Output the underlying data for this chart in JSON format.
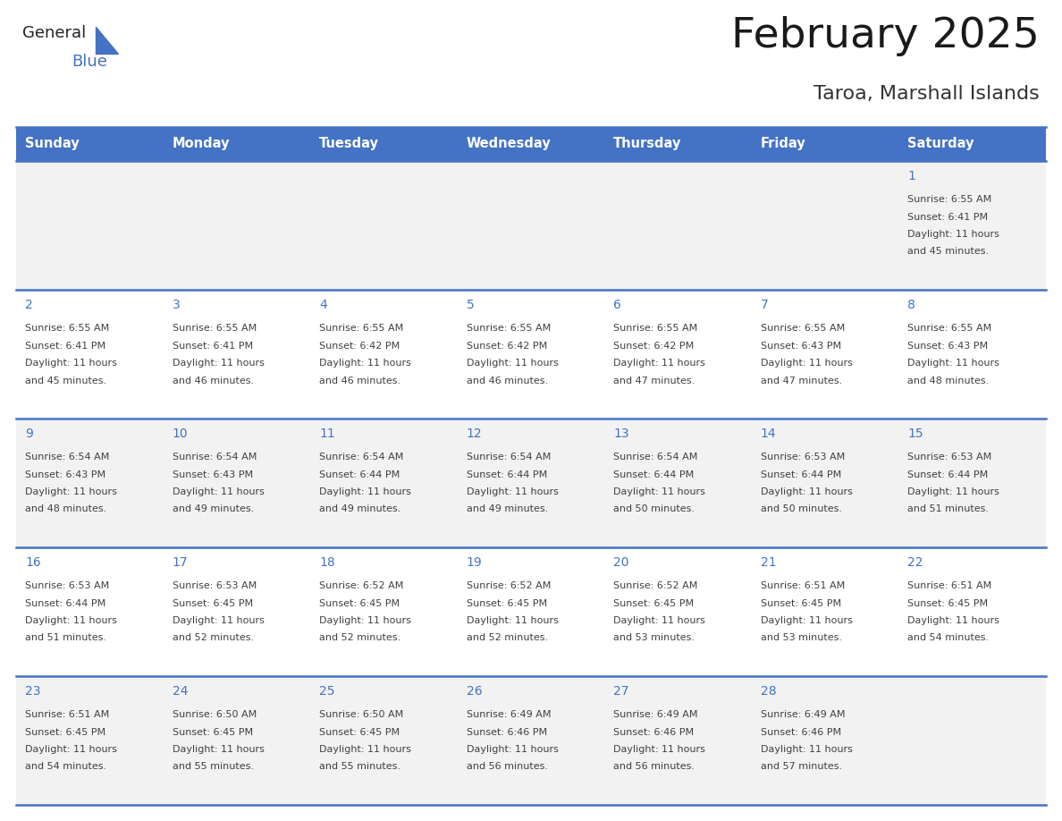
{
  "title": "February 2025",
  "subtitle": "Taroa, Marshall Islands",
  "header_bg": "#4472C4",
  "header_text": "#FFFFFF",
  "header_font_size": 10.5,
  "day_names": [
    "Sunday",
    "Monday",
    "Tuesday",
    "Wednesday",
    "Thursday",
    "Friday",
    "Saturday"
  ],
  "title_font_size": 34,
  "subtitle_font_size": 16,
  "cell_bg_odd": "#F2F2F2",
  "cell_bg_even": "#FFFFFF",
  "day_number_color": "#4472C4",
  "info_text_color": "#404040",
  "border_color": "#4472C4",
  "logo_general_color": "#222222",
  "logo_blue_color": "#4472C4",
  "logo_triangle_color": "#4472C4",
  "days": [
    {
      "day": 1,
      "row": 0,
      "col": 6,
      "sunrise": "6:55 AM",
      "sunset": "6:41 PM",
      "daylight": "11 hours and 45 minutes."
    },
    {
      "day": 2,
      "row": 1,
      "col": 0,
      "sunrise": "6:55 AM",
      "sunset": "6:41 PM",
      "daylight": "11 hours and 45 minutes."
    },
    {
      "day": 3,
      "row": 1,
      "col": 1,
      "sunrise": "6:55 AM",
      "sunset": "6:41 PM",
      "daylight": "11 hours and 46 minutes."
    },
    {
      "day": 4,
      "row": 1,
      "col": 2,
      "sunrise": "6:55 AM",
      "sunset": "6:42 PM",
      "daylight": "11 hours and 46 minutes."
    },
    {
      "day": 5,
      "row": 1,
      "col": 3,
      "sunrise": "6:55 AM",
      "sunset": "6:42 PM",
      "daylight": "11 hours and 46 minutes."
    },
    {
      "day": 6,
      "row": 1,
      "col": 4,
      "sunrise": "6:55 AM",
      "sunset": "6:42 PM",
      "daylight": "11 hours and 47 minutes."
    },
    {
      "day": 7,
      "row": 1,
      "col": 5,
      "sunrise": "6:55 AM",
      "sunset": "6:43 PM",
      "daylight": "11 hours and 47 minutes."
    },
    {
      "day": 8,
      "row": 1,
      "col": 6,
      "sunrise": "6:55 AM",
      "sunset": "6:43 PM",
      "daylight": "11 hours and 48 minutes."
    },
    {
      "day": 9,
      "row": 2,
      "col": 0,
      "sunrise": "6:54 AM",
      "sunset": "6:43 PM",
      "daylight": "11 hours and 48 minutes."
    },
    {
      "day": 10,
      "row": 2,
      "col": 1,
      "sunrise": "6:54 AM",
      "sunset": "6:43 PM",
      "daylight": "11 hours and 49 minutes."
    },
    {
      "day": 11,
      "row": 2,
      "col": 2,
      "sunrise": "6:54 AM",
      "sunset": "6:44 PM",
      "daylight": "11 hours and 49 minutes."
    },
    {
      "day": 12,
      "row": 2,
      "col": 3,
      "sunrise": "6:54 AM",
      "sunset": "6:44 PM",
      "daylight": "11 hours and 49 minutes."
    },
    {
      "day": 13,
      "row": 2,
      "col": 4,
      "sunrise": "6:54 AM",
      "sunset": "6:44 PM",
      "daylight": "11 hours and 50 minutes."
    },
    {
      "day": 14,
      "row": 2,
      "col": 5,
      "sunrise": "6:53 AM",
      "sunset": "6:44 PM",
      "daylight": "11 hours and 50 minutes."
    },
    {
      "day": 15,
      "row": 2,
      "col": 6,
      "sunrise": "6:53 AM",
      "sunset": "6:44 PM",
      "daylight": "11 hours and 51 minutes."
    },
    {
      "day": 16,
      "row": 3,
      "col": 0,
      "sunrise": "6:53 AM",
      "sunset": "6:44 PM",
      "daylight": "11 hours and 51 minutes."
    },
    {
      "day": 17,
      "row": 3,
      "col": 1,
      "sunrise": "6:53 AM",
      "sunset": "6:45 PM",
      "daylight": "11 hours and 52 minutes."
    },
    {
      "day": 18,
      "row": 3,
      "col": 2,
      "sunrise": "6:52 AM",
      "sunset": "6:45 PM",
      "daylight": "11 hours and 52 minutes."
    },
    {
      "day": 19,
      "row": 3,
      "col": 3,
      "sunrise": "6:52 AM",
      "sunset": "6:45 PM",
      "daylight": "11 hours and 52 minutes."
    },
    {
      "day": 20,
      "row": 3,
      "col": 4,
      "sunrise": "6:52 AM",
      "sunset": "6:45 PM",
      "daylight": "11 hours and 53 minutes."
    },
    {
      "day": 21,
      "row": 3,
      "col": 5,
      "sunrise": "6:51 AM",
      "sunset": "6:45 PM",
      "daylight": "11 hours and 53 minutes."
    },
    {
      "day": 22,
      "row": 3,
      "col": 6,
      "sunrise": "6:51 AM",
      "sunset": "6:45 PM",
      "daylight": "11 hours and 54 minutes."
    },
    {
      "day": 23,
      "row": 4,
      "col": 0,
      "sunrise": "6:51 AM",
      "sunset": "6:45 PM",
      "daylight": "11 hours and 54 minutes."
    },
    {
      "day": 24,
      "row": 4,
      "col": 1,
      "sunrise": "6:50 AM",
      "sunset": "6:45 PM",
      "daylight": "11 hours and 55 minutes."
    },
    {
      "day": 25,
      "row": 4,
      "col": 2,
      "sunrise": "6:50 AM",
      "sunset": "6:45 PM",
      "daylight": "11 hours and 55 minutes."
    },
    {
      "day": 26,
      "row": 4,
      "col": 3,
      "sunrise": "6:49 AM",
      "sunset": "6:46 PM",
      "daylight": "11 hours and 56 minutes."
    },
    {
      "day": 27,
      "row": 4,
      "col": 4,
      "sunrise": "6:49 AM",
      "sunset": "6:46 PM",
      "daylight": "11 hours and 56 minutes."
    },
    {
      "day": 28,
      "row": 4,
      "col": 5,
      "sunrise": "6:49 AM",
      "sunset": "6:46 PM",
      "daylight": "11 hours and 57 minutes."
    }
  ]
}
